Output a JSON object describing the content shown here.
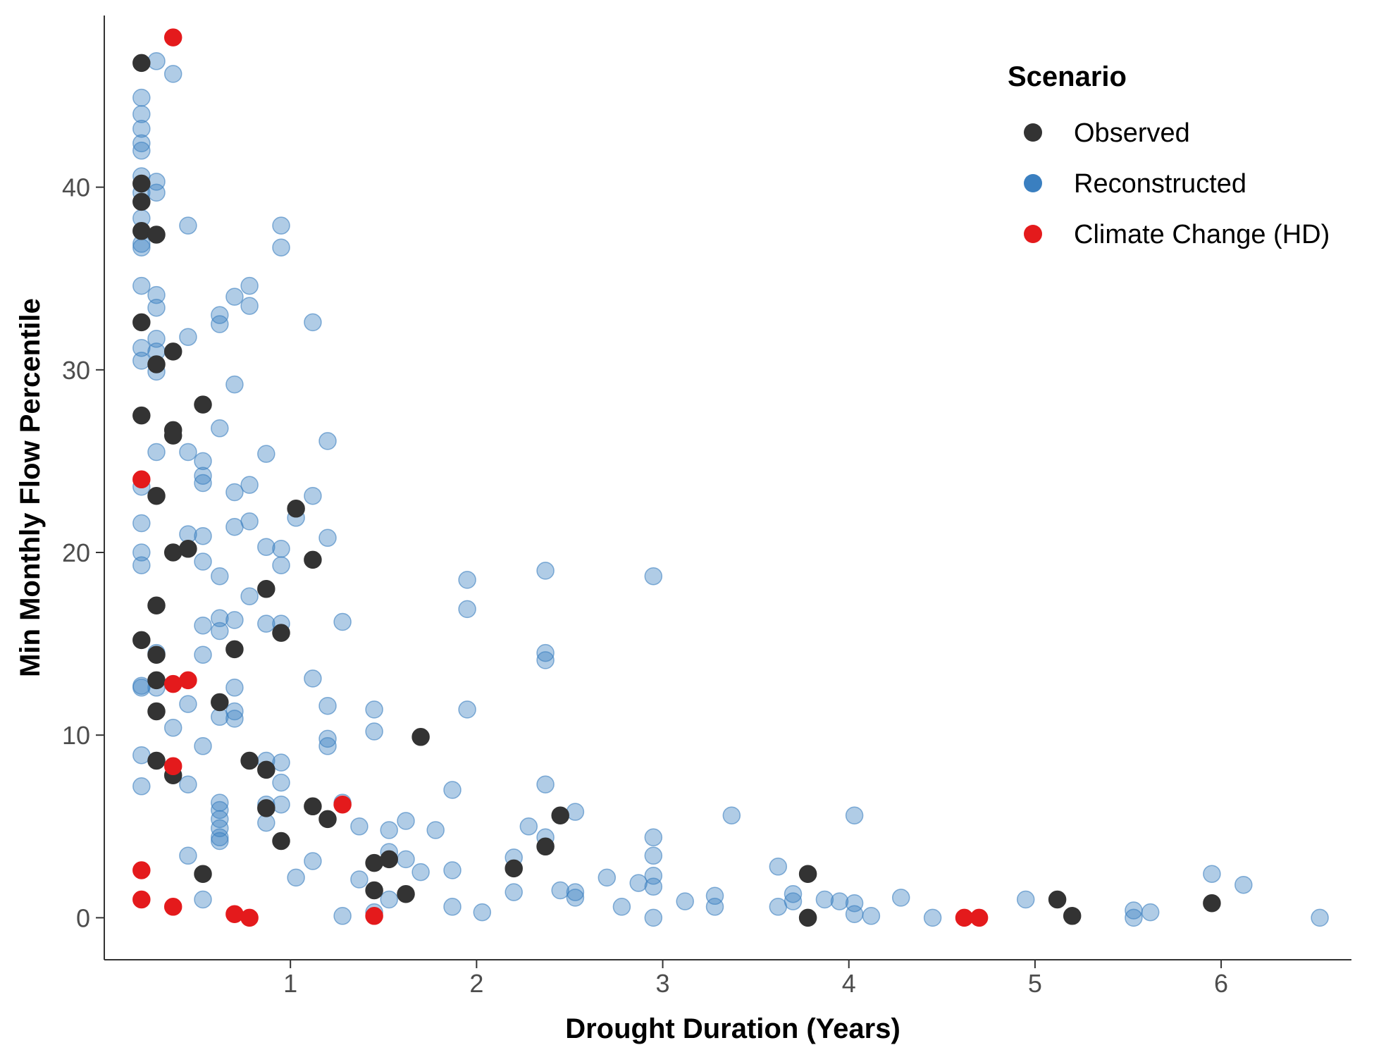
{
  "chart_data": {
    "type": "scatter",
    "title": "",
    "xlabel": "Drought Duration (Years)",
    "ylabel": "Min Monthly Flow Percentile",
    "xlim": [
      0,
      6.7
    ],
    "ylim": [
      -2.3,
      49.4
    ],
    "x_ticks": [
      1,
      2,
      3,
      4,
      5,
      6
    ],
    "y_ticks": [
      0,
      10,
      20,
      30,
      40
    ],
    "grid": false,
    "legend": {
      "title": "Scenario",
      "placement": "top-right"
    },
    "series": [
      {
        "name": "Observed",
        "color": "#333333",
        "opacity": 1,
        "points": [
          [
            0.2,
            46.8
          ],
          [
            0.2,
            40.2
          ],
          [
            0.2,
            39.2
          ],
          [
            0.2,
            37.6
          ],
          [
            0.2,
            32.6
          ],
          [
            0.2,
            27.5
          ],
          [
            0.2,
            15.2
          ],
          [
            0.28,
            37.4
          ],
          [
            0.28,
            30.3
          ],
          [
            0.28,
            23.1
          ],
          [
            0.28,
            17.1
          ],
          [
            0.28,
            14.4
          ],
          [
            0.28,
            13.0
          ],
          [
            0.28,
            11.3
          ],
          [
            0.28,
            8.6
          ],
          [
            0.37,
            31.0
          ],
          [
            0.37,
            26.7
          ],
          [
            0.37,
            26.4
          ],
          [
            0.37,
            20.0
          ],
          [
            0.37,
            7.8
          ],
          [
            0.45,
            20.2
          ],
          [
            0.53,
            28.1
          ],
          [
            0.53,
            2.4
          ],
          [
            0.62,
            11.8
          ],
          [
            0.7,
            14.7
          ],
          [
            0.78,
            8.6
          ],
          [
            0.87,
            18.0
          ],
          [
            0.87,
            8.1
          ],
          [
            0.87,
            6.0
          ],
          [
            0.95,
            15.6
          ],
          [
            0.95,
            4.2
          ],
          [
            1.03,
            22.4
          ],
          [
            1.12,
            19.6
          ],
          [
            1.12,
            6.1
          ],
          [
            1.2,
            5.4
          ],
          [
            1.45,
            3.0
          ],
          [
            1.45,
            1.5
          ],
          [
            1.53,
            3.2
          ],
          [
            1.62,
            1.3
          ],
          [
            1.7,
            9.9
          ],
          [
            2.2,
            2.7
          ],
          [
            2.37,
            3.9
          ],
          [
            2.45,
            5.6
          ],
          [
            3.78,
            2.4
          ],
          [
            3.78,
            0.0
          ],
          [
            5.12,
            1.0
          ],
          [
            5.2,
            0.1
          ],
          [
            5.95,
            0.8
          ]
        ]
      },
      {
        "name": "Reconstructed",
        "color": "#3a7fc0",
        "opacity": 0.4,
        "points": [
          [
            0.2,
            44.9
          ],
          [
            0.2,
            44.0
          ],
          [
            0.2,
            43.2
          ],
          [
            0.2,
            42.4
          ],
          [
            0.2,
            42.0
          ],
          [
            0.2,
            40.6
          ],
          [
            0.2,
            39.7
          ],
          [
            0.2,
            38.3
          ],
          [
            0.2,
            36.9
          ],
          [
            0.2,
            36.7
          ],
          [
            0.2,
            34.6
          ],
          [
            0.2,
            31.2
          ],
          [
            0.2,
            30.5
          ],
          [
            0.2,
            23.6
          ],
          [
            0.2,
            21.6
          ],
          [
            0.2,
            20.0
          ],
          [
            0.2,
            19.3
          ],
          [
            0.2,
            12.7
          ],
          [
            0.2,
            12.6
          ],
          [
            0.2,
            8.9
          ],
          [
            0.2,
            7.2
          ],
          [
            0.28,
            46.9
          ],
          [
            0.28,
            40.3
          ],
          [
            0.28,
            39.7
          ],
          [
            0.28,
            34.1
          ],
          [
            0.28,
            33.4
          ],
          [
            0.28,
            31.7
          ],
          [
            0.28,
            31.0
          ],
          [
            0.28,
            29.9
          ],
          [
            0.28,
            25.5
          ],
          [
            0.28,
            14.5
          ],
          [
            0.28,
            12.6
          ],
          [
            0.37,
            46.2
          ],
          [
            0.37,
            10.4
          ],
          [
            0.45,
            37.9
          ],
          [
            0.45,
            31.8
          ],
          [
            0.45,
            25.5
          ],
          [
            0.45,
            21.0
          ],
          [
            0.45,
            11.7
          ],
          [
            0.45,
            7.3
          ],
          [
            0.45,
            3.4
          ],
          [
            0.53,
            25.0
          ],
          [
            0.53,
            24.2
          ],
          [
            0.53,
            23.8
          ],
          [
            0.53,
            20.9
          ],
          [
            0.53,
            19.5
          ],
          [
            0.53,
            16.0
          ],
          [
            0.53,
            14.4
          ],
          [
            0.53,
            9.4
          ],
          [
            0.53,
            1.0
          ],
          [
            0.62,
            33.0
          ],
          [
            0.62,
            32.5
          ],
          [
            0.62,
            26.8
          ],
          [
            0.62,
            18.7
          ],
          [
            0.62,
            16.4
          ],
          [
            0.62,
            15.7
          ],
          [
            0.62,
            11.0
          ],
          [
            0.62,
            6.3
          ],
          [
            0.62,
            5.9
          ],
          [
            0.62,
            5.4
          ],
          [
            0.62,
            4.9
          ],
          [
            0.62,
            4.4
          ],
          [
            0.62,
            4.2
          ],
          [
            0.7,
            34.0
          ],
          [
            0.7,
            29.2
          ],
          [
            0.7,
            23.3
          ],
          [
            0.7,
            21.4
          ],
          [
            0.7,
            16.3
          ],
          [
            0.7,
            12.6
          ],
          [
            0.7,
            11.3
          ],
          [
            0.7,
            10.9
          ],
          [
            0.78,
            34.6
          ],
          [
            0.78,
            33.5
          ],
          [
            0.78,
            23.7
          ],
          [
            0.78,
            21.7
          ],
          [
            0.78,
            17.6
          ],
          [
            0.87,
            25.4
          ],
          [
            0.87,
            20.3
          ],
          [
            0.87,
            16.1
          ],
          [
            0.87,
            8.6
          ],
          [
            0.87,
            6.2
          ],
          [
            0.87,
            5.2
          ],
          [
            0.95,
            37.9
          ],
          [
            0.95,
            36.7
          ],
          [
            0.95,
            20.2
          ],
          [
            0.95,
            19.3
          ],
          [
            0.95,
            16.1
          ],
          [
            0.95,
            8.5
          ],
          [
            0.95,
            7.4
          ],
          [
            0.95,
            6.2
          ],
          [
            1.03,
            21.9
          ],
          [
            1.03,
            2.2
          ],
          [
            1.12,
            32.6
          ],
          [
            1.12,
            23.1
          ],
          [
            1.12,
            13.1
          ],
          [
            1.12,
            3.1
          ],
          [
            1.2,
            26.1
          ],
          [
            1.2,
            20.8
          ],
          [
            1.2,
            11.6
          ],
          [
            1.2,
            9.8
          ],
          [
            1.2,
            9.4
          ],
          [
            1.28,
            16.2
          ],
          [
            1.28,
            6.3
          ],
          [
            1.28,
            0.1
          ],
          [
            1.37,
            5.0
          ],
          [
            1.37,
            2.1
          ],
          [
            1.45,
            11.4
          ],
          [
            1.45,
            10.2
          ],
          [
            1.45,
            0.3
          ],
          [
            1.53,
            4.8
          ],
          [
            1.53,
            3.6
          ],
          [
            1.53,
            1.0
          ],
          [
            1.62,
            5.3
          ],
          [
            1.62,
            3.2
          ],
          [
            1.7,
            2.5
          ],
          [
            1.78,
            4.8
          ],
          [
            1.87,
            7.0
          ],
          [
            1.87,
            2.6
          ],
          [
            1.87,
            0.6
          ],
          [
            1.95,
            18.5
          ],
          [
            1.95,
            16.9
          ],
          [
            1.95,
            11.4
          ],
          [
            2.03,
            0.3
          ],
          [
            2.2,
            3.3
          ],
          [
            2.2,
            1.4
          ],
          [
            2.28,
            5.0
          ],
          [
            2.37,
            19.0
          ],
          [
            2.37,
            14.5
          ],
          [
            2.37,
            14.1
          ],
          [
            2.37,
            7.3
          ],
          [
            2.37,
            4.4
          ],
          [
            2.45,
            1.5
          ],
          [
            2.53,
            5.8
          ],
          [
            2.53,
            1.4
          ],
          [
            2.53,
            1.1
          ],
          [
            2.7,
            2.2
          ],
          [
            2.78,
            0.6
          ],
          [
            2.87,
            1.9
          ],
          [
            2.95,
            18.7
          ],
          [
            2.95,
            4.4
          ],
          [
            2.95,
            3.4
          ],
          [
            2.95,
            2.3
          ],
          [
            2.95,
            1.7
          ],
          [
            2.95,
            0.0
          ],
          [
            3.12,
            0.9
          ],
          [
            3.28,
            1.2
          ],
          [
            3.28,
            0.6
          ],
          [
            3.37,
            5.6
          ],
          [
            3.62,
            2.8
          ],
          [
            3.62,
            0.6
          ],
          [
            3.7,
            1.3
          ],
          [
            3.7,
            0.9
          ],
          [
            3.87,
            1.0
          ],
          [
            3.95,
            0.9
          ],
          [
            4.03,
            5.6
          ],
          [
            4.03,
            0.8
          ],
          [
            4.03,
            0.2
          ],
          [
            4.12,
            0.1
          ],
          [
            4.28,
            1.1
          ],
          [
            4.45,
            0.0
          ],
          [
            4.95,
            1.0
          ],
          [
            5.53,
            0.4
          ],
          [
            5.53,
            0.0
          ],
          [
            5.62,
            0.3
          ],
          [
            5.95,
            2.4
          ],
          [
            6.12,
            1.8
          ],
          [
            6.53,
            0.0
          ]
        ]
      },
      {
        "name": "Climate Change (HD)",
        "color": "#e41a1c",
        "opacity": 1,
        "points": [
          [
            0.37,
            48.2
          ],
          [
            0.2,
            24.0
          ],
          [
            0.37,
            12.8
          ],
          [
            0.45,
            13.0
          ],
          [
            0.37,
            8.3
          ],
          [
            0.2,
            2.6
          ],
          [
            0.2,
            1.0
          ],
          [
            0.37,
            0.6
          ],
          [
            0.7,
            0.2
          ],
          [
            0.78,
            0.0
          ],
          [
            1.28,
            6.2
          ],
          [
            1.45,
            0.1
          ],
          [
            4.62,
            0.0
          ],
          [
            4.7,
            0.0
          ]
        ]
      }
    ]
  }
}
